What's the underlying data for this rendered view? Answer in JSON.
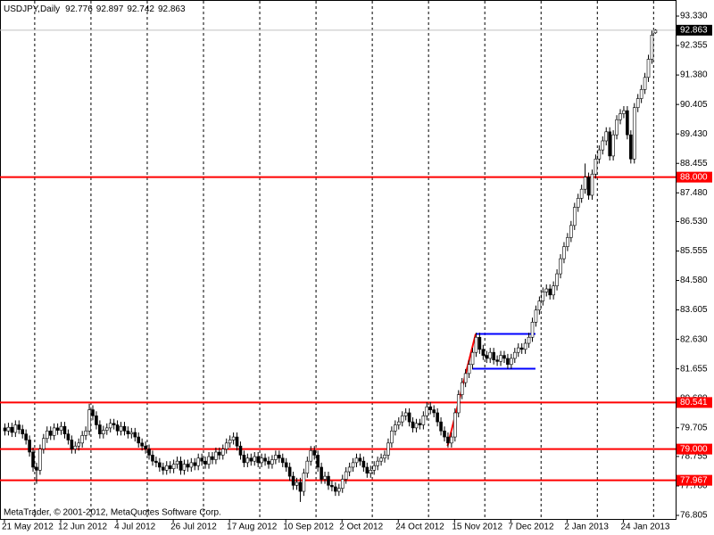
{
  "chart_data": {
    "type": "candlestick",
    "title": "USDJPY,Daily",
    "watermark": "MetaTrader, © 2001-2012, MetaQuotes Software Corp.",
    "categories": [
      "21 May 2012",
      null,
      null,
      null,
      null,
      null,
      null,
      null,
      null,
      null,
      null,
      null,
      null,
      null,
      null,
      null,
      "12 Jun 2012",
      null,
      null,
      null,
      null,
      null,
      null,
      null,
      null,
      null,
      null,
      null,
      null,
      null,
      null,
      null,
      "4 Jul 2012",
      null,
      null,
      null,
      null,
      null,
      null,
      null,
      null,
      null,
      null,
      null,
      null,
      null,
      null,
      null,
      "26 Jul 2012",
      null,
      null,
      null,
      null,
      null,
      null,
      null,
      null,
      null,
      null,
      null,
      null,
      null,
      null,
      null,
      "17 Aug 2012",
      null,
      null,
      null,
      null,
      null,
      null,
      null,
      null,
      null,
      null,
      null,
      null,
      null,
      null,
      null,
      "10 Sep 2012",
      null,
      null,
      null,
      null,
      null,
      null,
      null,
      null,
      null,
      null,
      null,
      null,
      null,
      null,
      null,
      "2 Oct 2012",
      null,
      null,
      null,
      null,
      null,
      null,
      null,
      null,
      null,
      null,
      null,
      null,
      null,
      null,
      null,
      "24 Oct 2012",
      null,
      null,
      null,
      null,
      null,
      null,
      null,
      null,
      null,
      null,
      null,
      null,
      null,
      null,
      null,
      "15 Nov 2012",
      null,
      null,
      null,
      null,
      null,
      null,
      null,
      null,
      null,
      null,
      null,
      null,
      null,
      null,
      null,
      "7 Dec 2012",
      null,
      null,
      null,
      null,
      null,
      null,
      null,
      null,
      null,
      null,
      null,
      null,
      null,
      null,
      null,
      "2 Jan 2013",
      null,
      null,
      null,
      null,
      null,
      null,
      null,
      null,
      null,
      null,
      null,
      null,
      null,
      null,
      null,
      "24 Jan 2013",
      null,
      null,
      null,
      null,
      null,
      null,
      null,
      null,
      null
    ],
    "open": [
      79.7,
      79.6,
      79.72,
      79.55,
      79.8,
      79.65,
      79.5,
      79.3,
      78.9,
      78.4,
      78.3,
      79.0,
      79.35,
      79.6,
      79.45,
      79.7,
      79.62,
      79.75,
      79.5,
      79.3,
      79.0,
      79.1,
      79.2,
      79.45,
      79.6,
      80.3,
      80.1,
      79.8,
      79.5,
      79.62,
      79.7,
      79.85,
      79.8,
      79.6,
      79.75,
      79.6,
      79.5,
      79.55,
      79.4,
      79.2,
      79.1,
      79.0,
      78.8,
      78.6,
      78.55,
      78.4,
      78.3,
      78.45,
      78.35,
      78.5,
      78.6,
      78.3,
      78.5,
      78.4,
      78.55,
      78.45,
      78.7,
      78.6,
      78.5,
      78.75,
      78.65,
      78.9,
      78.8,
      79.0,
      79.2,
      79.3,
      79.4,
      79.1,
      78.8,
      78.55,
      78.7,
      78.6,
      78.75,
      78.55,
      78.7,
      78.6,
      78.5,
      78.65,
      78.8,
      78.7,
      78.55,
      78.4,
      78.1,
      77.8,
      77.9,
      77.6,
      78.2,
      78.6,
      78.95,
      78.8,
      78.4,
      78.0,
      78.1,
      77.8,
      77.75,
      77.6,
      77.7,
      78.0,
      78.25,
      78.4,
      78.55,
      78.7,
      78.6,
      78.4,
      78.2,
      78.3,
      78.45,
      78.6,
      78.7,
      78.8,
      79.2,
      79.6,
      79.8,
      79.9,
      80.1,
      80.2,
      79.9,
      79.7,
      79.85,
      79.8,
      80.1,
      80.4,
      80.3,
      80.2,
      79.9,
      79.6,
      79.4,
      79.2,
      79.4,
      80.2,
      80.8,
      81.2,
      81.5,
      81.8,
      82.2,
      82.7,
      82.3,
      82.1,
      82.0,
      82.2,
      81.95,
      81.9,
      82.1,
      82.0,
      81.8,
      82.0,
      82.2,
      82.35,
      82.3,
      82.5,
      82.7,
      83.2,
      83.6,
      83.9,
      84.2,
      84.3,
      84.1,
      84.4,
      84.8,
      85.3,
      85.7,
      86.0,
      86.4,
      87.0,
      87.3,
      87.6,
      88.0,
      87.4,
      88.1,
      88.6,
      88.9,
      89.2,
      89.5,
      88.7,
      89.4,
      89.9,
      90.1,
      90.2,
      89.4,
      88.6,
      90.3,
      90.6,
      90.9,
      91.3,
      91.9,
      92.776
    ],
    "high": [
      79.85,
      79.87,
      79.87,
      79.95,
      79.95,
      79.8,
      79.65,
      79.45,
      79.05,
      78.55,
      79.15,
      79.5,
      79.75,
      79.75,
      79.85,
      79.85,
      79.9,
      79.9,
      79.65,
      79.45,
      79.25,
      79.35,
      79.6,
      79.75,
      80.5,
      80.45,
      80.25,
      79.95,
      79.77,
      79.85,
      80.0,
      80.0,
      79.95,
      79.9,
      79.9,
      79.75,
      79.7,
      79.7,
      79.55,
      79.35,
      79.25,
      79.15,
      78.95,
      78.75,
      78.7,
      78.55,
      78.6,
      78.6,
      78.65,
      78.75,
      78.75,
      78.65,
      78.65,
      78.7,
      78.7,
      78.85,
      78.85,
      78.75,
      78.9,
      78.9,
      79.05,
      79.05,
      79.15,
      79.35,
      79.45,
      79.55,
      79.55,
      79.25,
      78.95,
      78.85,
      78.85,
      78.9,
      78.9,
      78.85,
      78.85,
      78.75,
      78.8,
      78.95,
      78.95,
      78.85,
      78.7,
      78.55,
      78.25,
      78.05,
      78.05,
      78.35,
      78.75,
      79.1,
      79.1,
      78.95,
      78.55,
      78.25,
      78.25,
      77.95,
      77.9,
      77.85,
      78.15,
      78.4,
      78.55,
      78.7,
      78.85,
      78.85,
      78.75,
      78.55,
      78.45,
      78.6,
      78.75,
      78.85,
      78.95,
      79.35,
      79.75,
      79.95,
      80.05,
      80.25,
      80.35,
      80.35,
      80.05,
      80.0,
      80.0,
      80.25,
      80.55,
      80.55,
      80.45,
      80.35,
      80.05,
      79.75,
      79.55,
      79.55,
      80.35,
      80.95,
      81.35,
      81.65,
      81.95,
      82.35,
      82.85,
      82.85,
      82.45,
      82.25,
      82.35,
      82.35,
      82.1,
      82.25,
      82.25,
      82.15,
      82.15,
      82.35,
      82.5,
      82.5,
      82.65,
      82.85,
      83.35,
      83.75,
      84.05,
      84.35,
      84.45,
      84.45,
      84.55,
      84.95,
      85.45,
      85.85,
      86.15,
      86.55,
      87.15,
      87.45,
      87.75,
      88.45,
      88.15,
      88.25,
      88.75,
      89.05,
      89.35,
      89.65,
      89.65,
      89.55,
      90.05,
      90.25,
      90.35,
      90.35,
      89.55,
      90.45,
      90.75,
      91.05,
      91.45,
      92.05,
      92.85,
      92.897
    ],
    "low": [
      79.45,
      79.45,
      79.4,
      79.4,
      79.5,
      79.35,
      79.15,
      78.75,
      78.25,
      77.85,
      78.15,
      78.85,
      79.2,
      79.3,
      79.3,
      79.47,
      79.47,
      79.35,
      79.15,
      78.85,
      78.85,
      78.95,
      79.05,
      79.3,
      79.45,
      79.95,
      79.65,
      79.35,
      79.35,
      79.47,
      79.55,
      79.65,
      79.45,
      79.45,
      79.45,
      79.35,
      79.35,
      79.25,
      79.05,
      78.95,
      78.85,
      78.65,
      78.45,
      78.4,
      78.25,
      78.15,
      78.15,
      78.2,
      78.2,
      78.35,
      78.15,
      78.15,
      78.25,
      78.25,
      78.3,
      78.3,
      78.45,
      78.35,
      78.35,
      78.5,
      78.5,
      78.65,
      78.65,
      78.85,
      79.05,
      79.15,
      78.95,
      78.65,
      78.4,
      78.4,
      78.45,
      78.45,
      78.4,
      78.4,
      78.45,
      78.35,
      78.35,
      78.5,
      78.55,
      78.4,
      78.25,
      77.95,
      77.65,
      77.65,
      77.25,
      77.45,
      78.05,
      78.45,
      78.65,
      78.25,
      77.85,
      77.85,
      77.65,
      77.6,
      77.45,
      77.45,
      77.55,
      77.85,
      78.1,
      78.25,
      78.4,
      78.45,
      78.25,
      78.05,
      78.05,
      78.15,
      78.3,
      78.45,
      78.55,
      78.65,
      79.05,
      79.45,
      79.65,
      79.75,
      79.95,
      79.75,
      79.55,
      79.55,
      79.65,
      79.65,
      79.95,
      80.15,
      80.05,
      79.75,
      79.45,
      79.25,
      79.05,
      79.05,
      79.25,
      80.05,
      80.65,
      81.05,
      81.35,
      81.65,
      82.05,
      82.15,
      81.95,
      81.85,
      81.85,
      81.8,
      81.75,
      81.75,
      81.85,
      81.65,
      81.65,
      81.85,
      82.05,
      82.15,
      82.15,
      82.35,
      82.55,
      83.05,
      83.45,
      83.75,
      84.05,
      83.95,
      83.95,
      84.25,
      84.65,
      85.15,
      85.55,
      85.85,
      86.25,
      86.85,
      87.15,
      87.45,
      87.25,
      87.25,
      87.95,
      88.45,
      88.75,
      89.05,
      88.55,
      88.55,
      89.25,
      89.75,
      89.95,
      89.25,
      88.45,
      88.45,
      90.15,
      90.45,
      90.75,
      91.15,
      91.75,
      92.742
    ],
    "close": [
      79.6,
      79.72,
      79.55,
      79.8,
      79.65,
      79.5,
      79.3,
      78.9,
      78.4,
      78.3,
      79.0,
      79.35,
      79.6,
      79.45,
      79.7,
      79.62,
      79.75,
      79.5,
      79.3,
      79.0,
      79.1,
      79.2,
      79.45,
      79.6,
      80.3,
      80.1,
      79.8,
      79.5,
      79.62,
      79.7,
      79.85,
      79.8,
      79.6,
      79.75,
      79.6,
      79.5,
      79.55,
      79.4,
      79.2,
      79.1,
      79.0,
      78.8,
      78.6,
      78.55,
      78.4,
      78.3,
      78.45,
      78.35,
      78.5,
      78.6,
      78.3,
      78.5,
      78.4,
      78.55,
      78.45,
      78.7,
      78.6,
      78.5,
      78.75,
      78.65,
      78.9,
      78.8,
      79.0,
      79.2,
      79.3,
      79.4,
      79.1,
      78.8,
      78.55,
      78.7,
      78.6,
      78.75,
      78.55,
      78.7,
      78.6,
      78.5,
      78.65,
      78.8,
      78.7,
      78.55,
      78.4,
      78.1,
      77.8,
      77.9,
      77.6,
      78.2,
      78.6,
      78.95,
      78.8,
      78.4,
      78.0,
      78.1,
      77.8,
      77.75,
      77.6,
      77.7,
      78.0,
      78.25,
      78.4,
      78.55,
      78.7,
      78.6,
      78.4,
      78.2,
      78.3,
      78.45,
      78.6,
      78.7,
      78.8,
      79.2,
      79.6,
      79.8,
      79.9,
      80.1,
      80.2,
      79.9,
      79.7,
      79.85,
      79.8,
      80.1,
      80.4,
      80.3,
      80.2,
      79.9,
      79.6,
      79.4,
      79.2,
      79.4,
      80.2,
      80.8,
      81.2,
      81.5,
      81.8,
      82.2,
      82.7,
      82.3,
      82.1,
      82.0,
      82.2,
      81.95,
      81.9,
      82.1,
      82.0,
      81.8,
      82.0,
      82.2,
      82.35,
      82.3,
      82.5,
      82.7,
      83.2,
      83.6,
      83.9,
      84.2,
      84.3,
      84.1,
      84.4,
      84.8,
      85.3,
      85.7,
      86.0,
      86.4,
      87.0,
      87.3,
      87.6,
      88.0,
      87.4,
      88.1,
      88.6,
      88.9,
      89.2,
      89.5,
      88.7,
      89.4,
      89.9,
      90.1,
      90.2,
      89.4,
      88.6,
      90.3,
      90.6,
      90.9,
      91.3,
      91.9,
      92.7,
      92.863
    ],
    "up_color": "#ffffff",
    "down_color": "#000000",
    "ylim": [
      76.687,
      93.744
    ],
    "yticks": [
      {
        "value": 93.33,
        "label": "93.330"
      },
      92.355,
      {
        "value": 91.38,
        "label": "91.380"
      },
      90.405,
      {
        "value": 89.43,
        "label": "89.430"
      },
      88.455,
      {
        "value": 87.48,
        "label": "87.480"
      },
      {
        "value": 86.53,
        "label": "86.530"
      },
      85.555,
      {
        "value": 84.58,
        "label": "84.580"
      },
      83.605,
      {
        "value": 82.63,
        "label": "82.630"
      },
      81.655,
      {
        "value": 80.68,
        "label": "80.680"
      },
      79.705,
      78.755,
      {
        "value": 77.78,
        "label": "77.780"
      },
      76.805
    ],
    "grid": true,
    "hline_color": "#ff0000",
    "hlines": [
      {
        "value": 88,
        "label": "88.000"
      },
      80.541,
      {
        "value": 79,
        "label": "79.000"
      },
      77.967
    ],
    "trendlines": [
      {
        "color": "#ff0000",
        "x": [
          126,
          134
        ],
        "y": [
          79.1,
          82.81
        ]
      },
      {
        "color": "#0000ff",
        "x": [
          134,
          151
        ],
        "y": [
          82.81,
          82.81
        ]
      },
      {
        "color": "#0000ff",
        "x": [
          133,
          151
        ],
        "y": [
          81.66,
          81.66
        ]
      }
    ],
    "price_box_color": "#000000"
  }
}
